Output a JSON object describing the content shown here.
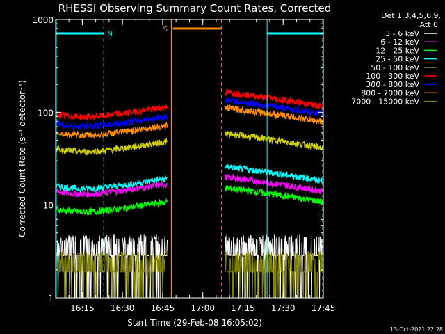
{
  "chart_data": {
    "type": "line",
    "title": "RHESSI Observing Summary Count Rates, Corrected",
    "xlabel": "Start Time (29-Feb-08 16:05:02)",
    "ylabel": "Corrected Count Rate (s⁻¹ detector⁻¹)",
    "yscale": "log",
    "ylim": [
      1,
      1000
    ],
    "xlim": [
      "16:05:02",
      "17:45:00"
    ],
    "x_ticks": [
      "16:15",
      "16:30",
      "16:45",
      "17:00",
      "17:15",
      "17:30",
      "17:45"
    ],
    "y_ticks": [
      "1",
      "10",
      "100",
      "1000"
    ],
    "legend_header": [
      "Det 1,3,4,5,6,9,",
      "Att 0"
    ],
    "legend_position": "right",
    "timestamp": "13-Oct-2021 22:28",
    "flag_labels": {
      "night": "N",
      "saa": "S"
    },
    "data_gap": {
      "start": "16:47",
      "end": "17:07"
    },
    "series": [
      {
        "name": "3 - 6 keV",
        "color": "#ffffff",
        "level_before": 3,
        "level_after": 3,
        "noisy": true
      },
      {
        "name": "6 - 12 keV",
        "color": "#ff00ff",
        "level_before": 14,
        "level_after": 17
      },
      {
        "name": "12 - 25 keV",
        "color": "#00ff00",
        "level_before": 9,
        "level_after": 13
      },
      {
        "name": "25 - 50 keV",
        "color": "#00ffff",
        "level_before": 16,
        "level_after": 22
      },
      {
        "name": "50 - 100 keV",
        "color": "#d0d000",
        "level_before": 40,
        "level_after": 50
      },
      {
        "name": "100 - 300 keV",
        "color": "#ff0000",
        "level_before": 95,
        "level_after": 140
      },
      {
        "name": "300 - 800 keV",
        "color": "#0000ff",
        "level_before": 75,
        "level_after": 115
      },
      {
        "name": "800 - 7000 keV",
        "color": "#ff8c00",
        "level_before": 60,
        "level_after": 95
      },
      {
        "name": "7000 - 15000 keV",
        "color": "#808000",
        "level_before": 2,
        "level_after": 2,
        "noisy": true
      }
    ]
  }
}
